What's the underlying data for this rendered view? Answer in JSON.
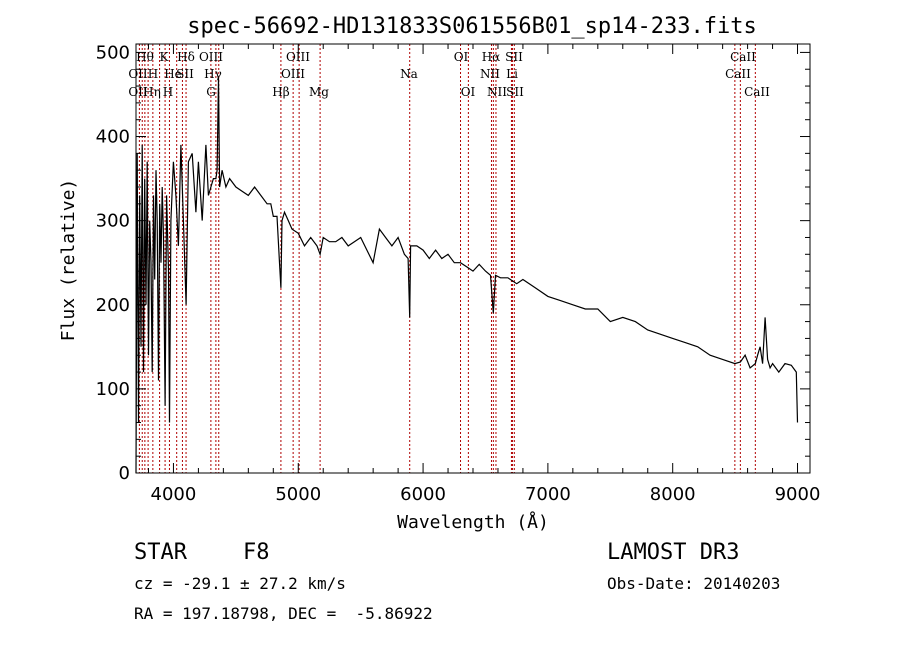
{
  "chart_data": {
    "type": "line",
    "title": "spec-56692-HD131833S061556B01_sp14-233.fits",
    "xlabel": "Wavelength (Å)",
    "ylabel": "Flux (relative)",
    "xlim": [
      3700,
      9100
    ],
    "ylim": [
      0,
      510
    ],
    "xticks": [
      4000,
      5000,
      6000,
      7000,
      8000,
      9000
    ],
    "yticks": [
      0,
      100,
      200,
      300,
      400,
      500
    ],
    "series": [
      {
        "name": "flux",
        "x": [
          3700,
          3710,
          3720,
          3730,
          3740,
          3750,
          3760,
          3770,
          3780,
          3790,
          3800,
          3810,
          3820,
          3830,
          3840,
          3850,
          3860,
          3870,
          3880,
          3890,
          3900,
          3910,
          3920,
          3933,
          3945,
          3960,
          3968,
          3980,
          4000,
          4020,
          4040,
          4060,
          4080,
          4101,
          4120,
          4150,
          4180,
          4200,
          4230,
          4260,
          4280,
          4300,
          4320,
          4340,
          4350,
          4361,
          4370,
          4390,
          4420,
          4450,
          4500,
          4550,
          4600,
          4650,
          4700,
          4750,
          4780,
          4800,
          4830,
          4850,
          4861,
          4870,
          4890,
          4920,
          4950,
          5000,
          5050,
          5100,
          5150,
          5175,
          5200,
          5250,
          5300,
          5350,
          5400,
          5450,
          5500,
          5550,
          5600,
          5650,
          5700,
          5750,
          5800,
          5850,
          5880,
          5893,
          5900,
          5950,
          6000,
          6050,
          6100,
          6150,
          6200,
          6250,
          6300,
          6350,
          6400,
          6450,
          6500,
          6540,
          6563,
          6580,
          6620,
          6680,
          6750,
          6800,
          6900,
          7000,
          7100,
          7200,
          7300,
          7400,
          7500,
          7600,
          7700,
          7800,
          7900,
          8000,
          8100,
          8200,
          8300,
          8400,
          8498,
          8542,
          8580,
          8620,
          8662,
          8680,
          8700,
          8720,
          8740,
          8760,
          8780,
          8800,
          8850,
          8900,
          8950,
          8990,
          9000
        ],
        "y": [
          0,
          380,
          60,
          330,
          150,
          390,
          120,
          350,
          200,
          370,
          140,
          300,
          250,
          120,
          330,
          230,
          360,
          300,
          110,
          320,
          250,
          340,
          280,
          80,
          330,
          240,
          60,
          300,
          370,
          330,
          270,
          390,
          300,
          200,
          370,
          380,
          310,
          370,
          300,
          390,
          330,
          340,
          350,
          350,
          360,
          470,
          340,
          360,
          340,
          350,
          340,
          335,
          330,
          340,
          330,
          320,
          320,
          305,
          305,
          250,
          220,
          300,
          310,
          300,
          290,
          285,
          270,
          280,
          270,
          260,
          280,
          275,
          275,
          280,
          270,
          275,
          280,
          265,
          250,
          290,
          280,
          270,
          280,
          260,
          255,
          185,
          270,
          270,
          265,
          255,
          265,
          255,
          260,
          250,
          250,
          245,
          240,
          248,
          240,
          235,
          190,
          235,
          232,
          232,
          225,
          230,
          220,
          210,
          205,
          200,
          195,
          195,
          180,
          185,
          180,
          170,
          165,
          160,
          155,
          150,
          140,
          135,
          130,
          132,
          140,
          125,
          130,
          140,
          150,
          130,
          185,
          135,
          125,
          130,
          120,
          130,
          128,
          120,
          60
        ]
      }
    ],
    "lines_row1": [
      "Hθ",
      "K",
      "Hδ",
      "OIII",
      "OIII",
      "OI",
      "Hα",
      "SII",
      "CaII"
    ],
    "lines_row2": [
      "OII",
      "H",
      "He",
      "SII",
      "Hγ",
      "OIII",
      "Na",
      "NII",
      "Li",
      "CaII"
    ],
    "lines_row3": [
      "OII",
      "Hη",
      "H",
      "G",
      "Hβ",
      "Mg",
      "OI",
      "NII",
      "SII",
      "CaII"
    ],
    "line_wavelengths": [
      3727,
      3750,
      3771,
      3797,
      3835,
      3889,
      3933,
      3968,
      4026,
      4072,
      4101,
      4300,
      4340,
      4363,
      4861,
      4959,
      5007,
      5175,
      5893,
      6300,
      6363,
      6548,
      6563,
      6584,
      6708,
      6716,
      6731,
      8498,
      8542,
      8662
    ]
  },
  "info": {
    "class_label": "STAR",
    "subclass": "F8",
    "cz": "cz = -29.1 ± 27.2 km/s",
    "coords": "RA = 197.18798, DEC =  -5.86922",
    "survey": "LAMOST DR3",
    "obs_date": "Obs-Date: 20140203"
  }
}
